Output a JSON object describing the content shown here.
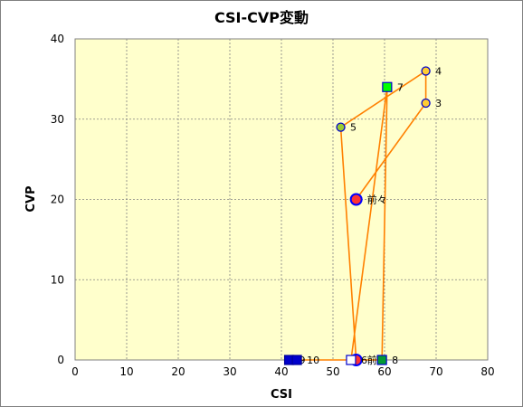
{
  "chart_data": {
    "type": "scatter",
    "title": "CSI-CVP変動",
    "xlabel": "CSI",
    "ylabel": "CVP",
    "xlim": [
      0,
      80
    ],
    "ylim": [
      0,
      40
    ],
    "xticks": [
      "0",
      "10",
      "20",
      "30",
      "40",
      "50",
      "60",
      "70",
      "80"
    ],
    "yticks": [
      "0",
      "10",
      "20",
      "30",
      "40"
    ],
    "grid": true,
    "colors": {
      "plot_bg": "#ffffcc",
      "line": "#ff8000",
      "grid": "#808080"
    },
    "path": [
      {
        "label": "前々",
        "x": 54.5,
        "y": 20,
        "marker": "circle",
        "size": "large",
        "fill": "#ff3333",
        "stroke": "#0000ff"
      },
      {
        "label": "3",
        "x": 68,
        "y": 32,
        "marker": "circle",
        "size": "small",
        "fill": "#ffcc33",
        "stroke": "#0000cc"
      },
      {
        "label": "4",
        "x": 68,
        "y": 36,
        "marker": "circle",
        "size": "small",
        "fill": "#ffcc33",
        "stroke": "#0000cc"
      },
      {
        "label": "5",
        "x": 51.5,
        "y": 29,
        "marker": "circle",
        "size": "small",
        "fill": "#99cc33",
        "stroke": "#0000cc"
      },
      {
        "label": "前",
        "x": 54.5,
        "y": 0,
        "marker": "circle",
        "size": "large",
        "fill": "#ff3333",
        "stroke": "#0000ff"
      },
      {
        "label": "6",
        "x": 53.5,
        "y": 0,
        "marker": "square",
        "size": "small",
        "fill": "#ffffff",
        "stroke": "#0000cc"
      },
      {
        "label": "7",
        "x": 60.5,
        "y": 34,
        "marker": "square",
        "size": "small",
        "fill": "#00ff00",
        "stroke": "#0000cc"
      },
      {
        "label": "8",
        "x": 59.5,
        "y": 0,
        "marker": "square",
        "size": "small",
        "fill": "#009933",
        "stroke": "#0000cc"
      },
      {
        "label": "9",
        "x": 41.5,
        "y": 0,
        "marker": "square",
        "size": "small",
        "fill": "#0000cc",
        "stroke": "#000099"
      },
      {
        "label": "10",
        "x": 43,
        "y": 0,
        "marker": "square",
        "size": "small",
        "fill": "#0000cc",
        "stroke": "#000099"
      }
    ]
  }
}
